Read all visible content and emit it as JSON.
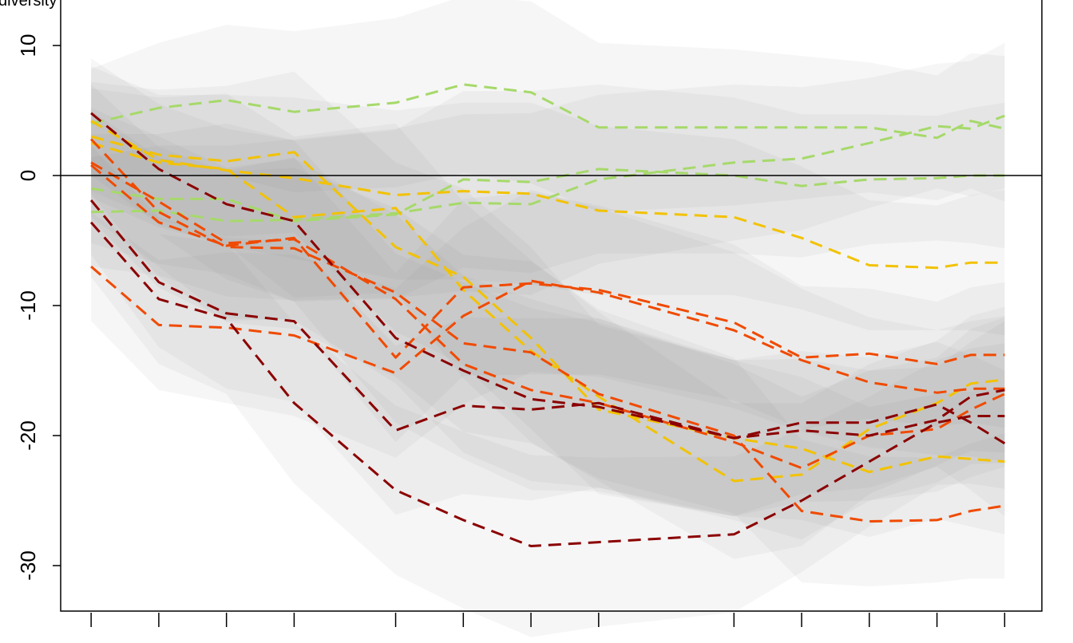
{
  "chart_data": {
    "type": "line",
    "title": "",
    "corner_label": "diversity",
    "xlabel": "",
    "ylabel": "",
    "ylim": [
      -33.5,
      13.5
    ],
    "xlim": [
      0.55,
      15.05
    ],
    "yticks": [
      -30,
      -20,
      -10,
      0,
      10
    ],
    "ytick_labels": [
      "-30",
      "-20",
      "-10",
      "0",
      "10"
    ],
    "xticks": [
      1,
      2,
      3,
      4,
      5.5,
      6.5,
      7.5,
      8.5,
      10.5,
      11.5,
      12.5,
      13.5,
      14.5
    ],
    "xtick_labels": [
      "",
      "",
      "",
      "",
      "",
      "",
      "",
      "",
      "",
      "",
      "",
      "",
      ""
    ],
    "reference_line": {
      "y": 0,
      "color": "#000000"
    },
    "grid": false,
    "legend": "none",
    "band_color": "#808080",
    "series": [
      {
        "color": "#a6d96a",
        "values": [
          4.0,
          5.2,
          5.8,
          4.9,
          5.6,
          7.0,
          6.4,
          3.7,
          3.7,
          3.7,
          3.7,
          2.9,
          4.2,
          3.6
        ]
      },
      {
        "color": "#a6d96a",
        "values": [
          -1.0,
          -1.8,
          -1.8,
          -3.5,
          -3.0,
          -0.3,
          -0.5,
          0.5,
          0.0,
          -0.8,
          -0.3,
          -0.2,
          0.0,
          0.0
        ]
      },
      {
        "color": "#a6d96a",
        "values": [
          -2.8,
          -2.7,
          -3.5,
          -3.4,
          -2.9,
          -2.1,
          -2.2,
          -0.3,
          1.0,
          1.3,
          2.5,
          3.8,
          3.6,
          4.6
        ]
      },
      {
        "color": "#f2c200",
        "values": [
          4.2,
          1.2,
          0.4,
          -0.2,
          -1.5,
          -1.2,
          -1.4,
          -2.7,
          -3.2,
          -4.8,
          -6.9,
          -7.1,
          -6.7,
          -6.7
        ]
      },
      {
        "color": "#f2c200",
        "values": [
          3.0,
          1.6,
          1.1,
          1.8,
          -5.5,
          -7.8,
          -12.5,
          -18.0,
          -20.2,
          -21.0,
          -22.8,
          -21.6,
          -21.8,
          -22.0
        ]
      },
      {
        "color": "#f2c200",
        "values": [
          2.5,
          1.0,
          0.5,
          -3.2,
          -2.5,
          -8.8,
          -13.5,
          -17.0,
          -23.5,
          -23.0,
          -19.5,
          -17.5,
          -16.0,
          -15.7
        ]
      },
      {
        "color": "#f04a00",
        "values": [
          0.8,
          -3.6,
          -5.4,
          -4.8,
          -14.0,
          -8.6,
          -8.3,
          -8.8,
          -11.3,
          -14.0,
          -13.7,
          -14.5,
          -13.8,
          -13.8
        ]
      },
      {
        "color": "#f04a00",
        "values": [
          2.8,
          -2.8,
          -5.5,
          -5.6,
          -9.0,
          -12.9,
          -13.6,
          -16.8,
          -20.0,
          -25.8,
          -26.6,
          -26.5,
          -25.8,
          -25.4
        ]
      },
      {
        "color": "#f04a00",
        "values": [
          -7.0,
          -11.5,
          -11.7,
          -12.3,
          -15.2,
          -10.8,
          -8.1,
          -9.0,
          -11.9,
          -14.2,
          -15.9,
          -16.7,
          -16.4,
          -16.4
        ]
      },
      {
        "color": "#f04a00",
        "values": [
          1.0,
          -2.0,
          -5.2,
          -4.9,
          -9.5,
          -14.5,
          -16.5,
          -17.5,
          -20.5,
          -22.5,
          -20.0,
          -19.5,
          -18.0,
          -16.8
        ]
      },
      {
        "color": "#8b0000",
        "values": [
          4.8,
          0.5,
          -2.2,
          -3.5,
          -12.5,
          -15.0,
          -17.2,
          -17.8,
          -20.2,
          -19.0,
          -19.0,
          -17.6,
          -19.0,
          -20.6
        ]
      },
      {
        "color": "#8b0000",
        "values": [
          -1.9,
          -8.2,
          -10.6,
          -11.2,
          -19.6,
          -17.7,
          -18.0,
          -17.5,
          -20.2,
          -19.6,
          -20.0,
          -18.8,
          -17.0,
          -16.5
        ]
      },
      {
        "color": "#8b0000",
        "values": [
          -3.6,
          -9.5,
          -11.0,
          -17.5,
          -24.2,
          -26.5,
          -28.5,
          -28.2,
          -27.6,
          -25.0,
          -22.0,
          -19.0,
          -18.5,
          -18.5
        ]
      }
    ],
    "series_x": [
      1,
      2,
      3,
      4,
      5.5,
      6.5,
      7.5,
      8.5,
      10.5,
      11.5,
      12.5,
      13.5,
      14.5,
      14.5
    ]
  }
}
